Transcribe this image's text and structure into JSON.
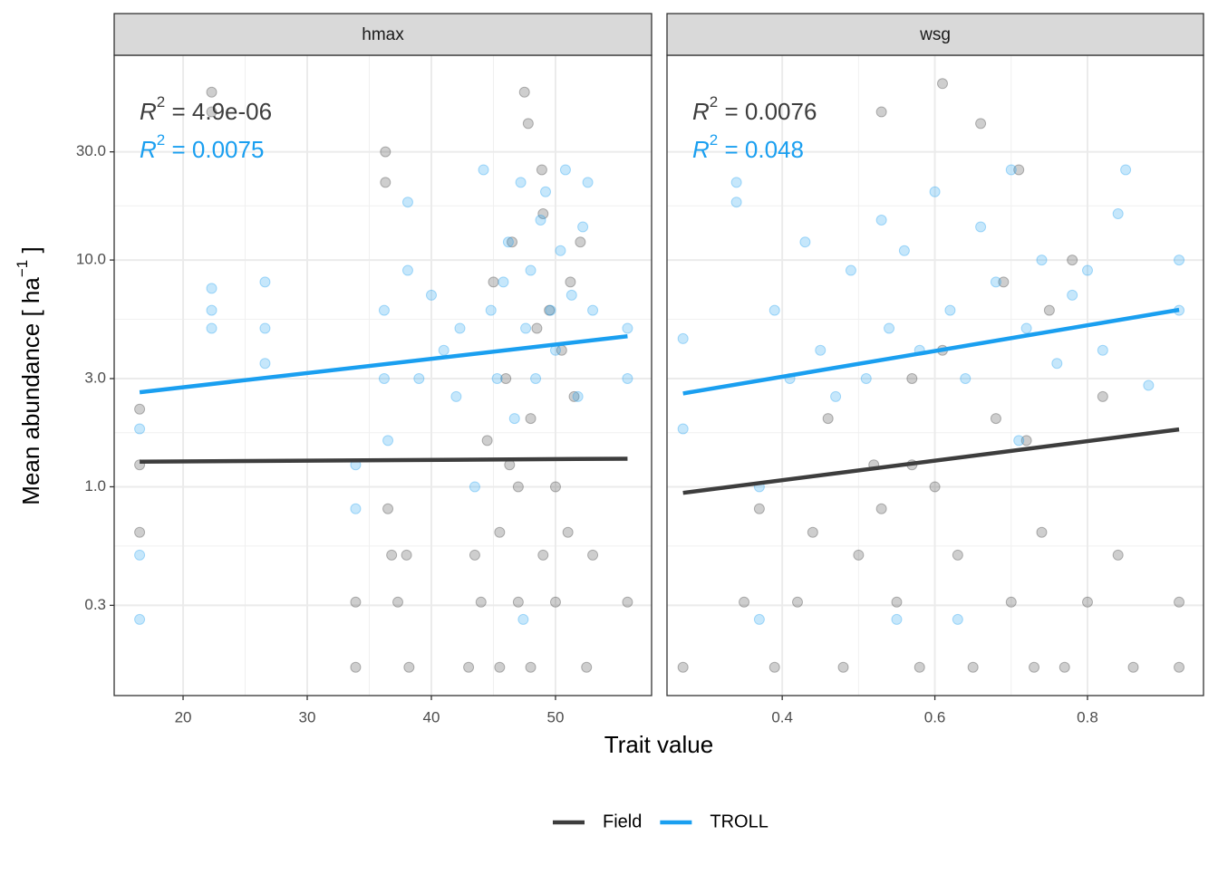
{
  "chart_data": {
    "type": "scatter",
    "xlabel": "Trait value",
    "ylabel": {
      "text": "Mean abundance [ ha",
      "sup": "−1",
      "end": " ]"
    },
    "log_y": true,
    "grid": true,
    "legend": "bottom",
    "ylim": [
      0.12,
      80
    ],
    "yticks": [
      {
        "value": 0.3,
        "label": "0.3"
      },
      {
        "value": 1,
        "label": "1.0"
      },
      {
        "value": 3,
        "label": "3.0"
      },
      {
        "value": 10,
        "label": "10.0"
      },
      {
        "value": 30,
        "label": "30.0"
      }
    ],
    "series": [
      {
        "name": "Field",
        "color": "#3d3d3d"
      },
      {
        "name": "TROLL",
        "color": "#1a9ff0"
      }
    ],
    "panels": [
      {
        "title": "hmax",
        "xlim": [
          14.45,
          57.74
        ],
        "xticks": [
          20,
          30,
          40,
          50
        ],
        "series": [
          {
            "x": [
              16.5,
              16.5,
              16.5,
              22.3,
              22.3,
              33.9,
              33.9,
              36.3,
              36.3,
              36.5,
              36.8,
              37.3,
              38.2,
              38.0,
              43.0,
              43.5,
              44.0,
              44.5,
              45.0,
              45.5,
              45.5,
              46.0,
              46.5,
              47.0,
              47.0,
              47.5,
              48.0,
              48.0,
              48.5,
              49.0,
              49.0,
              49.5,
              50.0,
              50.0,
              50.5,
              51.0,
              51.5,
              52.0,
              52.5,
              53.0,
              55.8,
              47.8,
              48.9,
              46.3,
              51.2
            ],
            "values": [
              2.2,
              1.25,
              0.63,
              55,
              45,
              0.31,
              0.16,
              30,
              22,
              0.8,
              0.5,
              0.31,
              0.16,
              0.5,
              0.16,
              0.5,
              0.31,
              1.6,
              8,
              0.63,
              0.16,
              3,
              12,
              0.31,
              1.0,
              55,
              2,
              0.16,
              5,
              0.5,
              16,
              6,
              0.31,
              1,
              4,
              0.63,
              2.5,
              12,
              0.16,
              0.5,
              0.31,
              40,
              25,
              1.25,
              8
            ],
            "fit": {
              "x": [
                16.5,
                55.8
              ],
              "values": [
                1.29,
                1.33
              ]
            },
            "r2": {
              "label": "R",
              "sup": "2",
              "text": " = 4.9e-06"
            }
          },
          {
            "x": [
              16.5,
              16.5,
              16.5,
              22.3,
              22.3,
              22.3,
              26.6,
              26.6,
              26.6,
              33.9,
              33.9,
              36.2,
              36.2,
              36.5,
              38.1,
              38.1,
              39.0,
              40.0,
              41.0,
              42.0,
              42.3,
              43.5,
              44.2,
              44.8,
              45.3,
              45.8,
              46.2,
              46.7,
              47.2,
              47.6,
              48.0,
              48.4,
              48.8,
              49.2,
              49.6,
              50.0,
              50.4,
              50.8,
              51.3,
              51.8,
              52.2,
              52.6,
              53.0,
              55.8,
              55.8,
              47.4
            ],
            "values": [
              1.8,
              0.5,
              0.26,
              7.5,
              6,
              5,
              8,
              5,
              3.5,
              1.25,
              0.8,
              6,
              3,
              1.6,
              18,
              9,
              3,
              7,
              4,
              2.5,
              5,
              1,
              25,
              6,
              3,
              8,
              12,
              2,
              22,
              5,
              9,
              3,
              15,
              20,
              6,
              4,
              11,
              25,
              7,
              2.5,
              14,
              22,
              6,
              5,
              3,
              0.26
            ],
            "fit": {
              "x": [
                16.5,
                55.8
              ],
              "values": [
                2.61,
                4.61
              ]
            },
            "r2": {
              "label": "R",
              "sup": "2",
              "text": " = 0.0075"
            }
          }
        ]
      },
      {
        "title": "wsg",
        "xlim": [
          0.249,
          0.952
        ],
        "xticks": [
          0.4,
          0.6,
          0.8
        ],
        "series": [
          {
            "x": [
              0.27,
              0.35,
              0.37,
              0.39,
              0.42,
              0.44,
              0.46,
              0.48,
              0.5,
              0.52,
              0.53,
              0.55,
              0.57,
              0.58,
              0.6,
              0.61,
              0.61,
              0.63,
              0.65,
              0.66,
              0.68,
              0.7,
              0.71,
              0.72,
              0.74,
              0.75,
              0.77,
              0.78,
              0.8,
              0.82,
              0.84,
              0.86,
              0.92,
              0.92,
              0.57,
              0.69,
              0.73,
              0.53
            ],
            "values": [
              0.16,
              0.31,
              0.8,
              0.16,
              0.31,
              0.63,
              2,
              0.16,
              0.5,
              1.25,
              45,
              0.31,
              3,
              0.16,
              1,
              60,
              4,
              0.5,
              0.16,
              40,
              2,
              0.31,
              25,
              1.6,
              0.63,
              6,
              0.16,
              10,
              0.31,
              2.5,
              0.5,
              0.16,
              0.16,
              0.31,
              1.25,
              8,
              0.16,
              0.8
            ],
            "fit": {
              "x": [
                0.27,
                0.92
              ],
              "values": [
                0.94,
                1.79
              ]
            },
            "r2": {
              "label": "R",
              "sup": "2",
              "text": " = 0.0076"
            }
          },
          {
            "x": [
              0.27,
              0.27,
              0.34,
              0.34,
              0.37,
              0.39,
              0.41,
              0.43,
              0.45,
              0.47,
              0.49,
              0.51,
              0.53,
              0.54,
              0.56,
              0.58,
              0.6,
              0.62,
              0.64,
              0.66,
              0.68,
              0.7,
              0.72,
              0.74,
              0.76,
              0.78,
              0.8,
              0.82,
              0.84,
              0.85,
              0.88,
              0.92,
              0.92,
              0.37,
              0.55,
              0.63,
              0.71
            ],
            "values": [
              4.5,
              1.8,
              22,
              18,
              1,
              6,
              3,
              12,
              4,
              2.5,
              9,
              3,
              15,
              5,
              11,
              4,
              20,
              6,
              3,
              14,
              8,
              25,
              5,
              10,
              3.5,
              7,
              9,
              4,
              16,
              25,
              2.8,
              10,
              6,
              0.26,
              0.26,
              0.26,
              1.6
            ],
            "fit": {
              "x": [
                0.27,
                0.92
              ],
              "values": [
                2.58,
                6.03
              ]
            },
            "r2": {
              "label": "R",
              "sup": "2",
              "text": " = 0.048"
            }
          }
        ]
      }
    ]
  }
}
